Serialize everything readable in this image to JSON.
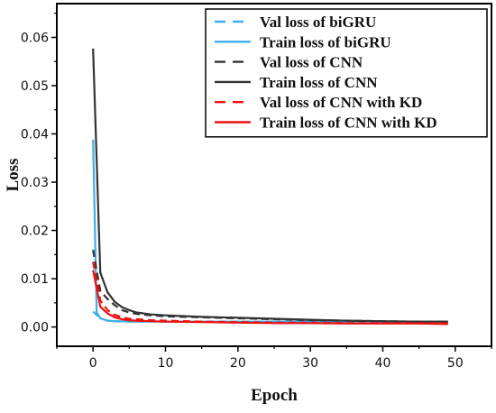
{
  "chart_data": {
    "type": "line",
    "title": "",
    "xlabel": "Epoch",
    "ylabel": "Loss",
    "xlim": [
      -5,
      55
    ],
    "ylim": [
      -0.004,
      0.067
    ],
    "xticks": [
      0,
      10,
      20,
      30,
      40,
      50
    ],
    "xtick_labels": [
      "0",
      "10",
      "20",
      "30",
      "40",
      "50"
    ],
    "yticks": [
      0.0,
      0.01,
      0.02,
      0.03,
      0.04,
      0.05,
      0.06
    ],
    "ytick_labels": [
      "0.00",
      "0.01",
      "0.02",
      "0.03",
      "0.04",
      "0.05",
      "0.06"
    ],
    "grid": false,
    "legend_position": "top-right",
    "colors": {
      "bigru": "#3daee9",
      "cnn": "#333333",
      "kd": "#ee1111"
    },
    "series": [
      {
        "name": "Val loss of biGRU",
        "color": "#3daee9",
        "dash": true,
        "x": [
          0,
          1,
          2,
          3,
          4,
          5,
          6,
          8,
          10,
          15,
          20,
          25,
          30,
          35,
          40,
          45,
          49
        ],
        "y": [
          0.0032,
          0.0018,
          0.0013,
          0.0012,
          0.0011,
          0.0011,
          0.0011,
          0.0011,
          0.0011,
          0.0011,
          0.0011,
          0.0011,
          0.0011,
          0.0011,
          0.0011,
          0.0011,
          0.0011
        ]
      },
      {
        "name": "Train loss of biGRU",
        "color": "#3daee9",
        "dash": false,
        "x": [
          0,
          0.5,
          1,
          2,
          3,
          4,
          5,
          8,
          10,
          15,
          20,
          25,
          30,
          35,
          40,
          45,
          49
        ],
        "y": [
          0.0388,
          0.003,
          0.0018,
          0.0013,
          0.0012,
          0.0012,
          0.0011,
          0.0011,
          0.0011,
          0.0011,
          0.0011,
          0.0011,
          0.0011,
          0.0011,
          0.0011,
          0.0011,
          0.0011
        ]
      },
      {
        "name": "Val loss of CNN",
        "color": "#333333",
        "dash": true,
        "x": [
          0,
          1,
          2,
          3,
          4,
          5,
          6,
          8,
          10,
          15,
          20,
          25,
          30,
          35,
          40,
          45,
          49
        ],
        "y": [
          0.016,
          0.0075,
          0.0058,
          0.0045,
          0.0035,
          0.003,
          0.0027,
          0.0024,
          0.0022,
          0.002,
          0.0018,
          0.0016,
          0.0014,
          0.0013,
          0.0012,
          0.0011,
          0.0011
        ]
      },
      {
        "name": "Train loss of CNN",
        "color": "#333333",
        "dash": false,
        "x": [
          0,
          1,
          2,
          3,
          4,
          5,
          6,
          8,
          10,
          15,
          20,
          25,
          30,
          35,
          40,
          45,
          49
        ],
        "y": [
          0.0577,
          0.0113,
          0.0072,
          0.0052,
          0.0041,
          0.0035,
          0.003,
          0.0026,
          0.0024,
          0.0021,
          0.0019,
          0.0017,
          0.0015,
          0.0013,
          0.0012,
          0.0011,
          0.0011
        ]
      },
      {
        "name": "Val loss of CNN with KD",
        "color": "#ee1111",
        "dash": true,
        "x": [
          0,
          1,
          2,
          3,
          4,
          5,
          6,
          8,
          10,
          15,
          20,
          25,
          30,
          35,
          40,
          45,
          49
        ],
        "y": [
          0.0135,
          0.0055,
          0.0035,
          0.0025,
          0.002,
          0.0017,
          0.0016,
          0.0014,
          0.0013,
          0.0011,
          0.001,
          0.0009,
          0.0009,
          0.0008,
          0.0008,
          0.0008,
          0.0008
        ]
      },
      {
        "name": "Train loss of CNN with KD",
        "color": "#ee1111",
        "dash": false,
        "x": [
          0,
          1,
          2,
          3,
          4,
          5,
          6,
          8,
          10,
          15,
          20,
          25,
          30,
          35,
          40,
          45,
          49
        ],
        "y": [
          0.0118,
          0.0042,
          0.0028,
          0.002,
          0.0016,
          0.0014,
          0.0013,
          0.0012,
          0.0011,
          0.001,
          0.0009,
          0.0008,
          0.0008,
          0.0007,
          0.0007,
          0.0007,
          0.0006
        ]
      }
    ]
  }
}
